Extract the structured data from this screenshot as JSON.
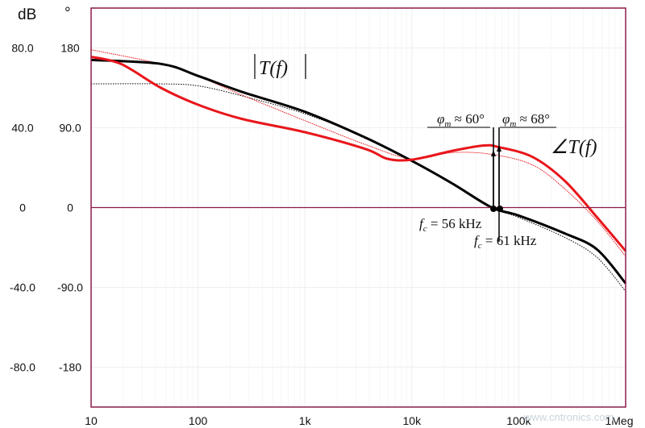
{
  "chart_data": {
    "type": "line",
    "x_scale": "log",
    "xlim": [
      10,
      1000000
    ],
    "ylim_left_db": [
      -100,
      100
    ],
    "ylim_right_deg": [
      -225,
      225
    ],
    "grid": true,
    "y_left_unit": "dB",
    "y_right_unit": "°",
    "x_ticks": [
      {
        "v": 10,
        "label": "10"
      },
      {
        "v": 100,
        "label": "100"
      },
      {
        "v": 1000,
        "label": "1k"
      },
      {
        "v": 10000,
        "label": "10k"
      },
      {
        "v": 100000,
        "label": "100k"
      },
      {
        "v": 1000000,
        "label": "1Meg"
      }
    ],
    "y_ticks": [
      {
        "db": 80,
        "db_label": "80.0",
        "deg_label": "180"
      },
      {
        "db": 40,
        "db_label": "40.0",
        "deg_label": "90.0"
      },
      {
        "db": 0,
        "db_label": "0",
        "deg_label": "0"
      },
      {
        "db": -40,
        "db_label": "-40.0",
        "deg_label": "-90.0"
      },
      {
        "db": -80,
        "db_label": "-80.0",
        "deg_label": "-180"
      }
    ],
    "series": [
      {
        "axis": "db",
        "color": "#000000",
        "style": "thick",
        "x": [
          10,
          45,
          100,
          257,
          1000,
          3700,
          10000,
          24000,
          56000,
          100000,
          270000,
          540000,
          1000000
        ],
        "y": [
          74,
          72,
          66,
          58,
          48,
          35,
          23.4,
          12,
          0,
          -4,
          -13,
          -21,
          -38
        ]
      },
      {
        "axis": "db",
        "color": "#000000",
        "style": "dotted",
        "x": [
          10,
          45,
          100,
          257,
          1000,
          3700,
          10000,
          24000,
          56000,
          100000,
          270000,
          540000,
          1000000
        ],
        "y": [
          62,
          62,
          61,
          56,
          47,
          35,
          23.4,
          12,
          0,
          -5,
          -15,
          -25,
          -42
        ]
      },
      {
        "axis": "deg",
        "color": "#e8161b",
        "style": "thick",
        "x": [
          10,
          19,
          45,
          100,
          257,
          1000,
          3700,
          5900,
          10000,
          24000,
          47000,
          66000,
          135000,
          270000,
          540000,
          1000000
        ],
        "y": [
          170,
          162,
          135,
          116,
          100,
          85,
          66,
          55,
          54,
          64,
          70,
          68,
          57,
          30,
          -11,
          -49
        ]
      },
      {
        "axis": "deg",
        "color": "#e8161b",
        "style": "thin",
        "x": [
          10,
          45,
          100,
          257,
          1000,
          3700,
          10000,
          24000,
          56000,
          135000,
          270000,
          540000,
          1000000
        ],
        "y": [
          178,
          162,
          148,
          127,
          98,
          71,
          55,
          62,
          60,
          48,
          21,
          -15,
          -55
        ]
      }
    ],
    "annotations": {
      "magnitude_label": "T(f)",
      "phase_label": "∠T(f)",
      "pm1": {
        "sym": "φ",
        "sub": "m",
        "text": " ≈ 60°"
      },
      "pm2": {
        "sym": "φ",
        "sub": "m",
        "text": " ≈ 68°"
      },
      "fc1": {
        "sym": "f",
        "sub": "c",
        "text": " = 56 kHz",
        "freq": 56000
      },
      "fc2": {
        "sym": "f",
        "sub": "c",
        "text": " = 61 kHz",
        "freq": 61000
      }
    }
  },
  "watermark": "www.cntronics.com",
  "colors": {
    "frame": "#8b1a4a",
    "zero_line": "#8b1a4a",
    "grid": "#eeeeee",
    "phase": "#e8161b",
    "mag": "#000000"
  }
}
